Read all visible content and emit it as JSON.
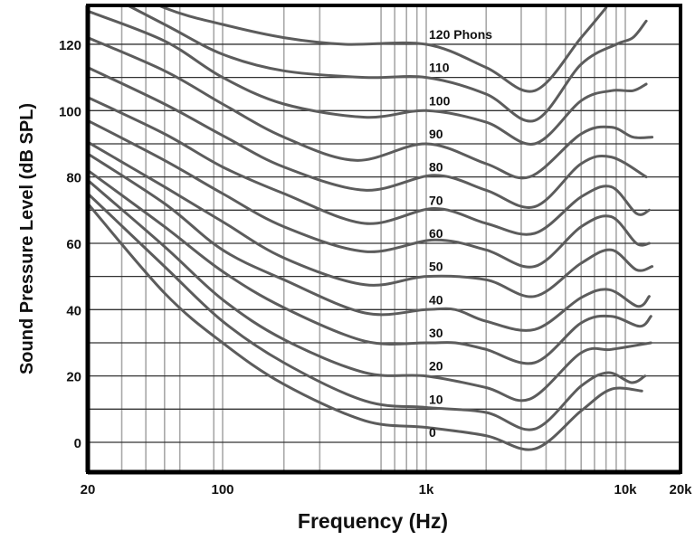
{
  "chart_data": {
    "type": "line",
    "title": "",
    "xlabel": "Frequency (Hz)",
    "ylabel": "Sound Pressure Level (dB SPL)",
    "x_scale": "log",
    "xlim": [
      20,
      20000
    ],
    "ylim": [
      -9,
      131
    ],
    "grid": true,
    "x_ticks": [
      {
        "value": 20,
        "label": "20"
      },
      {
        "value": 100,
        "label": "100"
      },
      {
        "value": 1000,
        "label": "1k"
      },
      {
        "value": 10000,
        "label": "10k"
      },
      {
        "value": 20000,
        "label": "20k"
      }
    ],
    "y_ticks": [
      {
        "value": 0,
        "label": "0"
      },
      {
        "value": 20,
        "label": "20"
      },
      {
        "value": 40,
        "label": "40"
      },
      {
        "value": 60,
        "label": "60"
      },
      {
        "value": 80,
        "label": "80"
      },
      {
        "value": 100,
        "label": "100"
      },
      {
        "value": 120,
        "label": "120"
      }
    ],
    "x_gridlines": [
      30,
      40,
      50,
      60,
      90,
      100,
      200,
      300,
      600,
      700,
      800,
      900,
      1000,
      2000,
      3000,
      4000,
      5000,
      6000,
      7000,
      8000,
      9000,
      10000
    ],
    "y_gridlines": [
      0,
      10,
      20,
      30,
      40,
      50,
      60,
      70,
      80,
      90,
      100,
      110,
      120
    ],
    "line_color": "#5c5c5c",
    "series": [
      {
        "name": "120 Phons",
        "phon": 120,
        "points": [
          [
            20,
            142
          ],
          [
            50,
            131
          ],
          [
            100,
            126
          ],
          [
            200,
            122
          ],
          [
            400,
            120
          ],
          [
            1000,
            120
          ],
          [
            2000,
            113
          ],
          [
            3500,
            106
          ],
          [
            6000,
            122
          ],
          [
            8000,
            131
          ]
        ]
      },
      {
        "name": "110",
        "phon": 110,
        "points": [
          [
            20,
            138
          ],
          [
            50,
            126
          ],
          [
            100,
            117
          ],
          [
            200,
            112
          ],
          [
            500,
            110
          ],
          [
            1000,
            110
          ],
          [
            2000,
            105
          ],
          [
            3500,
            97
          ],
          [
            6000,
            114
          ],
          [
            9000,
            120
          ],
          [
            11000,
            122
          ],
          [
            13000,
            127
          ]
        ]
      },
      {
        "name": "100",
        "phon": 100,
        "points": [
          [
            20,
            130
          ],
          [
            50,
            121
          ],
          [
            100,
            110
          ],
          [
            200,
            102
          ],
          [
            500,
            98
          ],
          [
            1000,
            100
          ],
          [
            2000,
            96.5
          ],
          [
            3500,
            90
          ],
          [
            6000,
            103
          ],
          [
            8500,
            106
          ],
          [
            11000,
            106
          ],
          [
            13000,
            108
          ]
        ]
      },
      {
        "name": "90",
        "phon": 90,
        "points": [
          [
            20,
            122
          ],
          [
            50,
            112
          ],
          [
            100,
            102
          ],
          [
            200,
            92
          ],
          [
            450,
            85
          ],
          [
            1000,
            90
          ],
          [
            2000,
            84
          ],
          [
            3300,
            80
          ],
          [
            6000,
            93
          ],
          [
            8500,
            95
          ],
          [
            11000,
            92
          ],
          [
            14000,
            92
          ]
        ]
      },
      {
        "name": "80",
        "phon": 80,
        "points": [
          [
            20,
            113
          ],
          [
            50,
            102
          ],
          [
            100,
            92.5
          ],
          [
            200,
            83
          ],
          [
            500,
            76
          ],
          [
            1100,
            80.5
          ],
          [
            2000,
            76
          ],
          [
            3500,
            71
          ],
          [
            6000,
            84
          ],
          [
            8500,
            86
          ],
          [
            13000,
            80
          ]
        ]
      },
      {
        "name": "70",
        "phon": 70,
        "points": [
          [
            20,
            104
          ],
          [
            50,
            93
          ],
          [
            100,
            83
          ],
          [
            200,
            75
          ],
          [
            500,
            66
          ],
          [
            1100,
            70.5
          ],
          [
            2000,
            66
          ],
          [
            3500,
            63
          ],
          [
            6000,
            74
          ],
          [
            8500,
            77
          ],
          [
            11500,
            69
          ],
          [
            13500,
            70
          ]
        ]
      },
      {
        "name": "60",
        "phon": 60,
        "points": [
          [
            20,
            97
          ],
          [
            50,
            85
          ],
          [
            100,
            75
          ],
          [
            200,
            65
          ],
          [
            500,
            57.5
          ],
          [
            1100,
            61
          ],
          [
            2000,
            58
          ],
          [
            3500,
            53
          ],
          [
            6000,
            65
          ],
          [
            8500,
            68
          ],
          [
            11500,
            60
          ],
          [
            13500,
            60
          ]
        ]
      },
      {
        "name": "50",
        "phon": 50,
        "points": [
          [
            20,
            90.5
          ],
          [
            50,
            77
          ],
          [
            100,
            66.5
          ],
          [
            200,
            55.6
          ],
          [
            500,
            47.5
          ],
          [
            1000,
            50
          ],
          [
            2000,
            49
          ],
          [
            3500,
            44
          ],
          [
            6000,
            54
          ],
          [
            8500,
            58
          ],
          [
            11500,
            52
          ],
          [
            14000,
            53
          ]
        ]
      },
      {
        "name": "40",
        "phon": 40,
        "points": [
          [
            20,
            87
          ],
          [
            50,
            72
          ],
          [
            100,
            58
          ],
          [
            200,
            49
          ],
          [
            500,
            39
          ],
          [
            1000,
            40
          ],
          [
            1400,
            40
          ],
          [
            2000,
            36.5
          ],
          [
            3500,
            34
          ],
          [
            6000,
            43.6
          ],
          [
            8300,
            46
          ],
          [
            11700,
            41
          ],
          [
            13500,
            44
          ]
        ]
      },
      {
        "name": "30",
        "phon": 30,
        "points": [
          [
            20,
            82
          ],
          [
            50,
            65
          ],
          [
            100,
            51.5
          ],
          [
            200,
            40.6
          ],
          [
            500,
            30.5
          ],
          [
            1000,
            30
          ],
          [
            1400,
            30
          ],
          [
            2000,
            28
          ],
          [
            3500,
            24
          ],
          [
            6000,
            36
          ],
          [
            8500,
            38
          ],
          [
            12000,
            35
          ],
          [
            13800,
            38
          ]
        ]
      },
      {
        "name": "20",
        "phon": 20,
        "points": [
          [
            20,
            79
          ],
          [
            50,
            59
          ],
          [
            100,
            43
          ],
          [
            200,
            31
          ],
          [
            500,
            21
          ],
          [
            1000,
            20
          ],
          [
            2000,
            16.5
          ],
          [
            3300,
            13
          ],
          [
            6000,
            27
          ],
          [
            8500,
            28
          ],
          [
            13800,
            30
          ]
        ]
      },
      {
        "name": "10",
        "phon": 10,
        "points": [
          [
            20,
            75
          ],
          [
            50,
            53
          ],
          [
            100,
            36.5
          ],
          [
            200,
            24
          ],
          [
            500,
            12.5
          ],
          [
            1000,
            10.5
          ],
          [
            2000,
            9
          ],
          [
            3500,
            4
          ],
          [
            6000,
            17
          ],
          [
            8200,
            21
          ],
          [
            10800,
            18
          ],
          [
            12800,
            20
          ]
        ]
      },
      {
        "name": "0",
        "phon": 0,
        "points": [
          [
            20,
            72
          ],
          [
            50,
            45
          ],
          [
            100,
            30
          ],
          [
            200,
            17.5
          ],
          [
            500,
            6.5
          ],
          [
            1000,
            4.5
          ],
          [
            2000,
            2
          ],
          [
            3500,
            -2
          ],
          [
            6000,
            9.5
          ],
          [
            8500,
            16
          ],
          [
            12300,
            15.5
          ]
        ]
      }
    ]
  }
}
